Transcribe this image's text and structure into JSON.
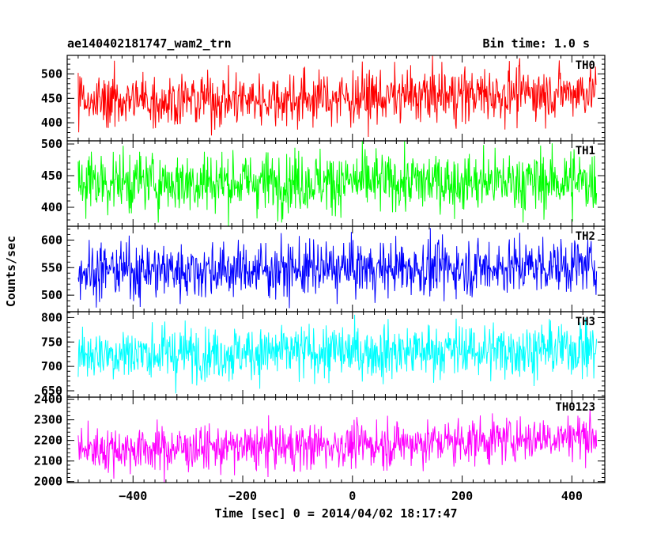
{
  "header": {
    "title": "ae140402181747_wam2_trn",
    "bin_time": "Bin time: 1.0 s"
  },
  "chart_data": {
    "type": "line",
    "title": "ae140402181747_wam2_trn",
    "bin_time_s": 1.0,
    "xlabel": "Time [sec] 0 = 2014/04/02 18:17:47",
    "ylabel": "Counts/sec",
    "xlim": [
      -520,
      460
    ],
    "x_range": [
      -500,
      445
    ],
    "x_ticks": [
      -400,
      -200,
      0,
      200,
      400
    ],
    "x_tick_labels": [
      "−400",
      "−200",
      "0",
      "200",
      "400"
    ],
    "grid": false,
    "legend": "none",
    "panels": [
      {
        "name": "TH0",
        "color": "#ff0000",
        "ylim": [
          363,
          538
        ],
        "y_ticks": [
          400,
          450,
          500
        ],
        "mean": 446,
        "noise": 28,
        "trend_end": 20
      },
      {
        "name": "TH1",
        "color": "#00ff00",
        "ylim": [
          370,
          505
        ],
        "y_ticks": [
          400,
          450,
          500
        ],
        "mean": 440,
        "noise": 24,
        "trend_end": 0
      },
      {
        "name": "TH2",
        "color": "#0000ff",
        "ylim": [
          470,
          625
        ],
        "y_ticks": [
          500,
          550,
          600
        ],
        "mean": 545,
        "noise": 25,
        "trend_end": 10
      },
      {
        "name": "TH3",
        "color": "#00ffff",
        "ylim": [
          637,
          812
        ],
        "y_ticks": [
          650,
          700,
          750,
          800
        ],
        "mean": 727,
        "noise": 28,
        "trend_end": 10
      },
      {
        "name": "TH0123",
        "color": "#ff00ff",
        "ylim": [
          1995,
          2410
        ],
        "y_ticks": [
          2000,
          2100,
          2200,
          2300,
          2400
        ],
        "mean": 2158,
        "noise": 55,
        "trend_end": 70
      }
    ]
  }
}
